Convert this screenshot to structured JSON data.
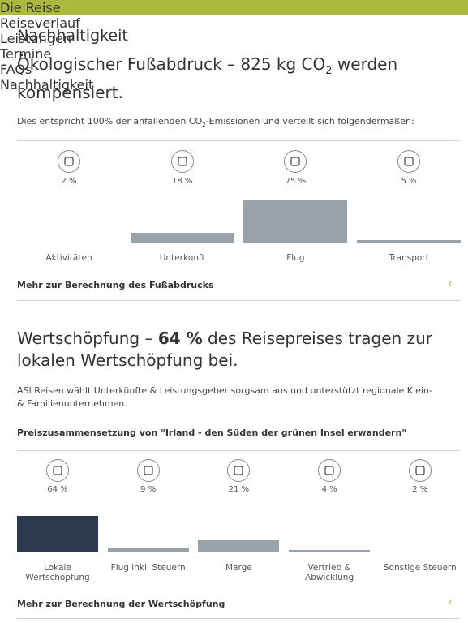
{
  "nav": [
    "Die Reise",
    "Reiseverlauf",
    "Leistungen",
    "Termine",
    "FAQs",
    "Nachhaltigkeit"
  ],
  "page_title": "Nachhaltigkeit",
  "footprint": {
    "heading": [
      "Ökologischer Fußabdruck – 825 kg CO",
      "2",
      " werden kompensiert."
    ],
    "intro": [
      "Dies entspricht 100% der anfallenden CO",
      "2",
      "-Emissionen und verteilt sich folgendermaßen:"
    ],
    "items": [
      {
        "label": "Aktivitäten",
        "value": 2,
        "value_label": "2 %"
      },
      {
        "label": "Unterkunft",
        "value": 18,
        "value_label": "18 %"
      },
      {
        "label": "Flug",
        "value": 75,
        "value_label": "75 %"
      },
      {
        "label": "Transport",
        "value": 5,
        "value_label": "5 %"
      }
    ],
    "more": "Mehr zur Berechnung des Fußabdrucks"
  },
  "value_creation": {
    "heading": [
      "Wertschöpfung – ",
      "64 %",
      " des Reisepreises tragen zur lokalen Wertschöpfung bei."
    ],
    "intro": "ASI Reisen wählt Unterkünfte & Leistungsgeber sorgsam aus und unterstützt regionale Klein- & Familienunternehmen.",
    "subtitle": "Preiszusammensetzung von \"Irland - den Süden der grünen Insel erwandern\"",
    "items": [
      {
        "label": "Lokale Wertschöpfung",
        "value": 64,
        "value_label": "64 %"
      },
      {
        "label": "Flug inkl. Steuern",
        "value": 9,
        "value_label": "9 %"
      },
      {
        "label": "Marge",
        "value": 21,
        "value_label": "21 %"
      },
      {
        "label": "Vertrieb & Abwicklung",
        "value": 4,
        "value_label": "4 %"
      },
      {
        "label": "Sonstige Steuern",
        "value": 2,
        "value_label": "2 %"
      }
    ],
    "more": "Mehr zur Berechnung der Wertschöpfung"
  }
}
